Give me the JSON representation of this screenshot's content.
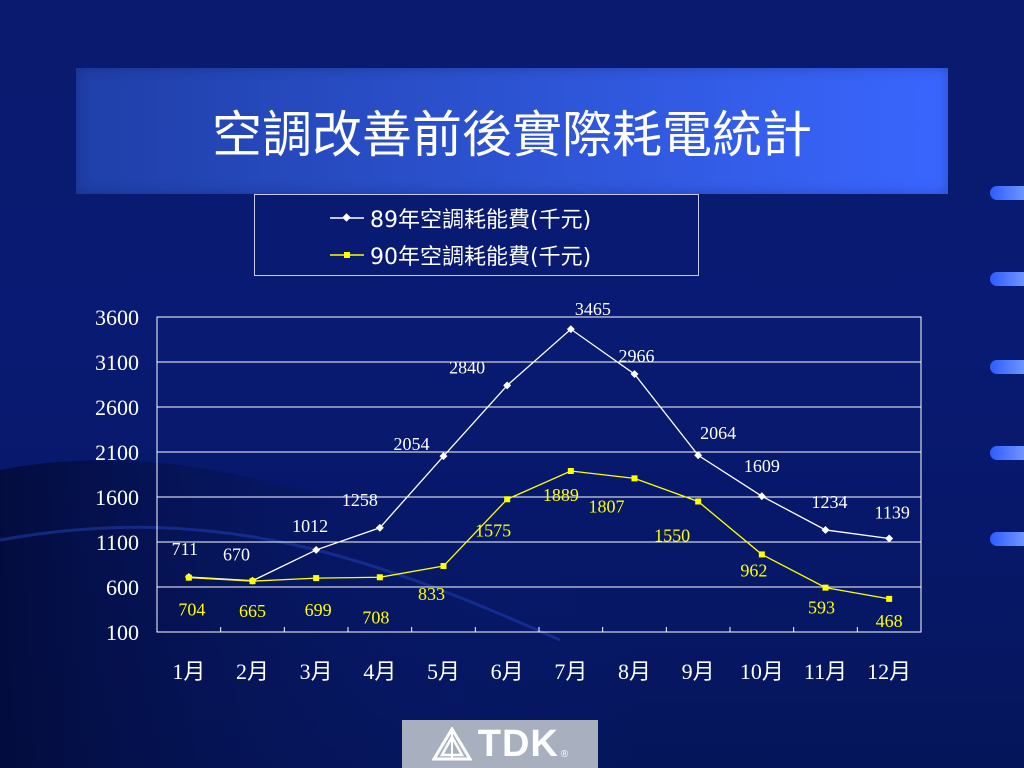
{
  "title": "空調改善前後實際耗電統計",
  "legend": {
    "series_89": "89年空調耗能費(千元)",
    "series_90": "90年空調耗能費(千元)"
  },
  "logo": {
    "text": "TDK",
    "mark": "®"
  },
  "colors": {
    "background": "#081a73",
    "title_bar": "#2e55d6",
    "series_89": "#ffffff",
    "series_90": "#ffff00",
    "grid": "#ffffff"
  },
  "chart_data": {
    "type": "line",
    "categories": [
      "1月",
      "2月",
      "3月",
      "4月",
      "5月",
      "6月",
      "7月",
      "8月",
      "9月",
      "10月",
      "11月",
      "12月"
    ],
    "series": [
      {
        "name": "89年空調耗能費(千元)",
        "color": "#ffffff",
        "marker": "diamond",
        "values": [
          711,
          670,
          1012,
          1258,
          2054,
          2840,
          3465,
          2966,
          2064,
          1609,
          1234,
          1139
        ]
      },
      {
        "name": "90年空調耗能費(千元)",
        "color": "#ffff00",
        "marker": "square",
        "values": [
          704,
          665,
          699,
          708,
          833,
          1575,
          1889,
          1807,
          1550,
          962,
          593,
          468
        ]
      }
    ],
    "yticks": [
      "3600",
      "3100",
      "2600",
      "2100",
      "1600",
      "1100",
      "600",
      "100"
    ],
    "ylim": [
      100,
      3600
    ],
    "grid": true,
    "legend_position": "top"
  }
}
